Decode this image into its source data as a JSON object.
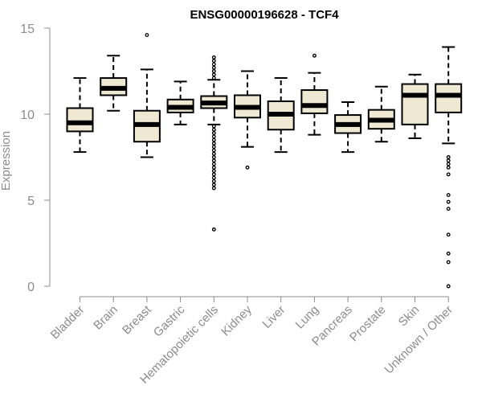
{
  "chart_data": {
    "type": "boxplot",
    "title": "ENSG00000196628 - TCF4",
    "xlabel": "",
    "ylabel": "Expression",
    "ylim": [
      0,
      15
    ],
    "yticks": [
      0,
      5,
      10,
      15
    ],
    "grid": false,
    "legend": "none",
    "box_fill": "#efe9d3",
    "axis_color": "#8c8c8c",
    "categories": [
      "Bladder",
      "Brain",
      "Breast",
      "Gastric",
      "Hematopoietic cells",
      "Kidney",
      "Liver",
      "Lung",
      "Pancreas",
      "Prostate",
      "Skin",
      "Unknown / Other"
    ],
    "boxes": [
      {
        "category": "Bladder",
        "whisker_low": 7.8,
        "q1": 9.0,
        "median": 9.5,
        "q3": 10.35,
        "whisker_high": 12.1,
        "outliers": []
      },
      {
        "category": "Brain",
        "whisker_low": 10.2,
        "q1": 11.1,
        "median": 11.5,
        "q3": 12.1,
        "whisker_high": 13.4,
        "outliers": []
      },
      {
        "category": "Breast",
        "whisker_low": 7.5,
        "q1": 8.4,
        "median": 9.4,
        "q3": 10.2,
        "whisker_high": 12.6,
        "outliers": [
          14.6
        ]
      },
      {
        "category": "Gastric",
        "whisker_low": 9.4,
        "q1": 10.1,
        "median": 10.4,
        "q3": 10.85,
        "whisker_high": 11.9,
        "outliers": []
      },
      {
        "category": "Hematopoietic cells",
        "whisker_low": 9.4,
        "q1": 10.35,
        "median": 10.65,
        "q3": 11.05,
        "whisker_high": 12.0,
        "outliers": [
          13.3,
          13.1,
          12.9,
          12.7,
          12.5,
          12.3,
          12.1,
          9.3,
          9.1,
          8.9,
          8.7,
          8.5,
          8.3,
          8.1,
          7.9,
          7.7,
          7.5,
          7.3,
          7.1,
          6.9,
          6.7,
          6.5,
          6.3,
          6.1,
          5.9,
          5.7,
          3.3
        ]
      },
      {
        "category": "Kidney",
        "whisker_low": 8.1,
        "q1": 9.8,
        "median": 10.4,
        "q3": 11.1,
        "whisker_high": 12.5,
        "outliers": [
          6.9
        ]
      },
      {
        "category": "Liver",
        "whisker_low": 7.8,
        "q1": 9.1,
        "median": 10.0,
        "q3": 10.75,
        "whisker_high": 12.1,
        "outliers": []
      },
      {
        "category": "Lung",
        "whisker_low": 8.8,
        "q1": 10.05,
        "median": 10.5,
        "q3": 11.4,
        "whisker_high": 12.4,
        "outliers": [
          13.4
        ]
      },
      {
        "category": "Pancreas",
        "whisker_low": 7.8,
        "q1": 8.9,
        "median": 9.4,
        "q3": 9.95,
        "whisker_high": 10.7,
        "outliers": []
      },
      {
        "category": "Prostate",
        "whisker_low": 8.4,
        "q1": 9.15,
        "median": 9.65,
        "q3": 10.25,
        "whisker_high": 11.6,
        "outliers": []
      },
      {
        "category": "Skin",
        "whisker_low": 8.6,
        "q1": 9.4,
        "median": 11.1,
        "q3": 11.75,
        "whisker_high": 12.3,
        "outliers": []
      },
      {
        "category": "Unknown / Other",
        "whisker_low": 8.3,
        "q1": 10.1,
        "median": 11.1,
        "q3": 11.75,
        "whisker_high": 13.9,
        "outliers": [
          7.5,
          7.3,
          7.1,
          6.9,
          6.5,
          5.3,
          4.9,
          4.5,
          3.0,
          1.9,
          1.4,
          0.0
        ]
      }
    ]
  }
}
